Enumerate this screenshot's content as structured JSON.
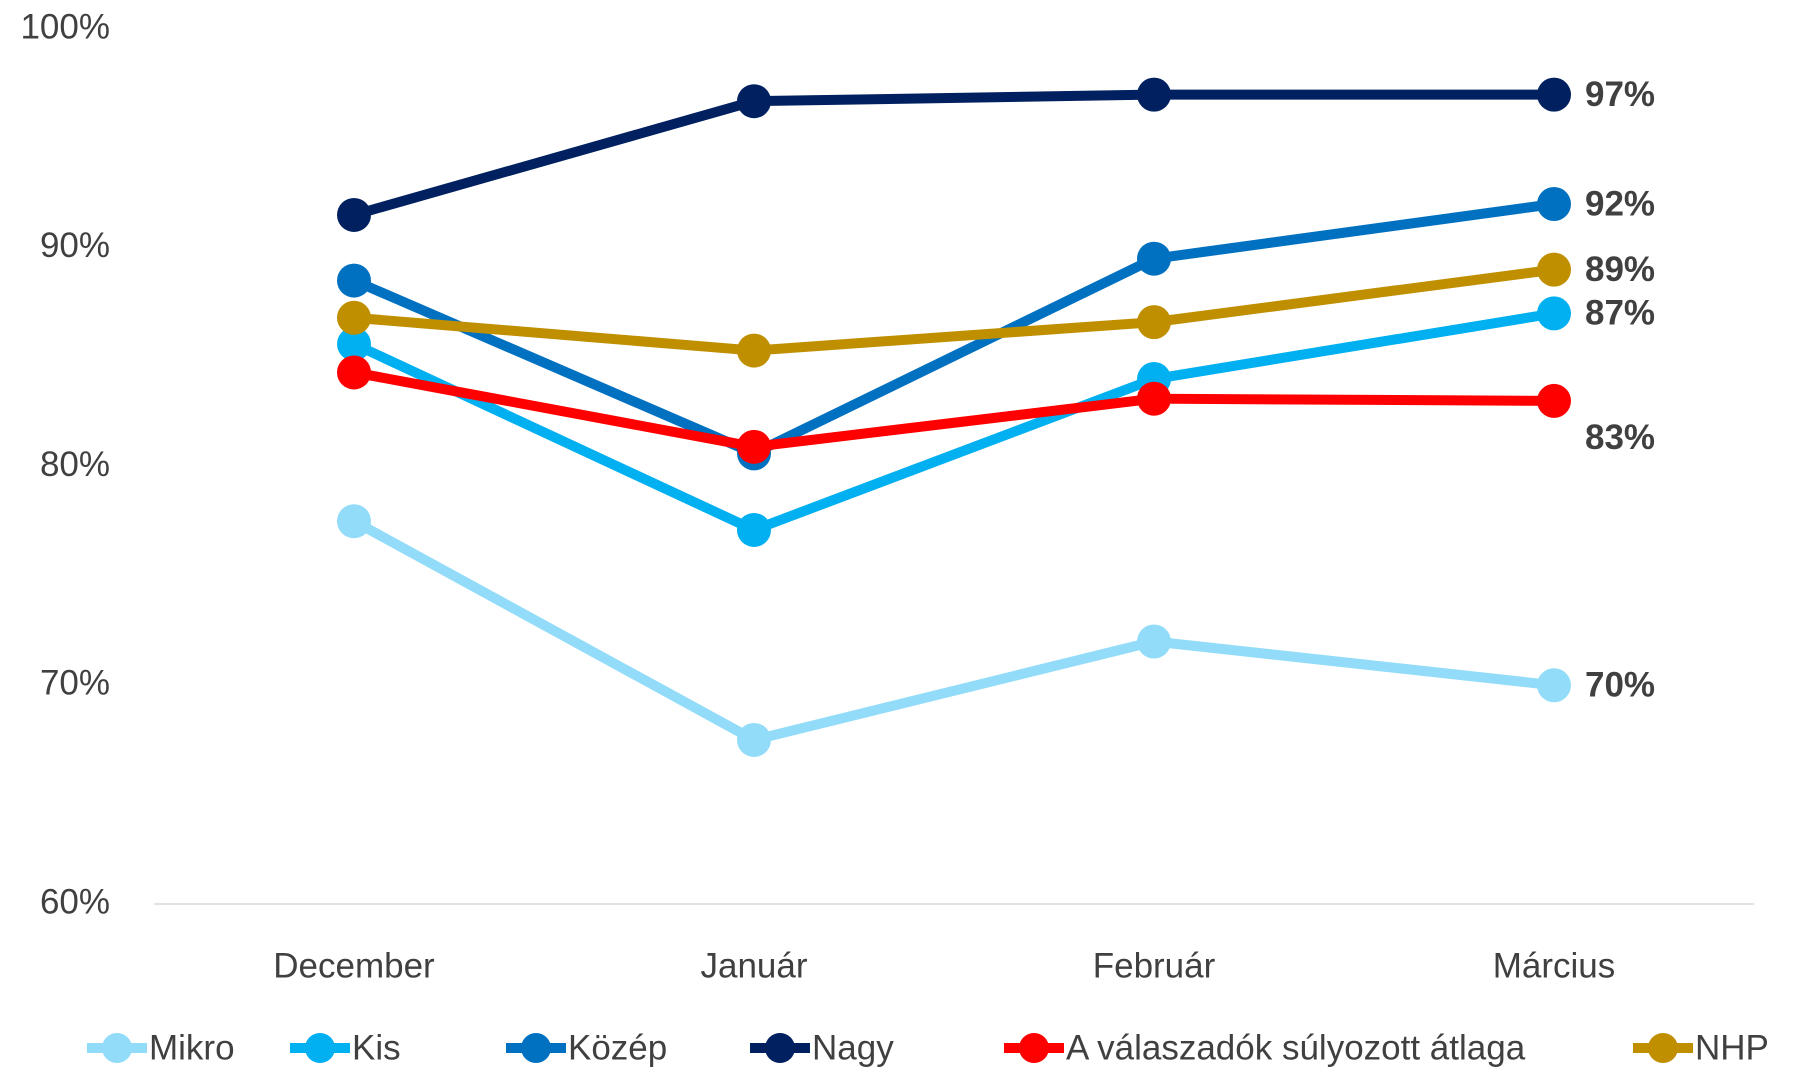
{
  "chart_data": {
    "type": "line",
    "categories": [
      "December",
      "Január",
      "Február",
      "Március"
    ],
    "ylim": [
      60,
      100
    ],
    "yticks": [
      {
        "value": 60,
        "label": "60%"
      },
      {
        "value": 70,
        "label": "70%"
      },
      {
        "value": 80,
        "label": "80%"
      },
      {
        "value": 90,
        "label": "90%"
      },
      {
        "value": 100,
        "label": "100%"
      }
    ],
    "grid": false,
    "legend": "bottom",
    "series": [
      {
        "name": "Mikro",
        "color": "#92dcfa",
        "values": [
          77.5,
          67.5,
          72,
          70
        ],
        "value_labels": [
          null,
          null,
          null,
          "70%"
        ]
      },
      {
        "name": "Kis",
        "color": "#00b0f0",
        "values": [
          85.6,
          77.1,
          84,
          87
        ],
        "value_labels": [
          null,
          null,
          null,
          "87%"
        ]
      },
      {
        "name": "Közép",
        "color": "#0070c0",
        "values": [
          88.5,
          80.6,
          89.5,
          92
        ],
        "value_labels": [
          null,
          null,
          null,
          "92%"
        ]
      },
      {
        "name": "Nagy",
        "color": "#002060",
        "values": [
          91.5,
          96.7,
          97,
          97
        ],
        "value_labels": [
          null,
          null,
          null,
          "97%"
        ]
      },
      {
        "name": "A válaszadók súlyozott átlaga",
        "color": "#ff0000",
        "values": [
          84.3,
          80.9,
          83.1,
          83
        ],
        "value_labels": [
          null,
          null,
          null,
          "83%"
        ]
      },
      {
        "name": "NHP",
        "color": "#bf8f00",
        "values": [
          86.8,
          85.3,
          86.6,
          89
        ],
        "value_labels": [
          null,
          null,
          null,
          "89%"
        ]
      }
    ]
  }
}
